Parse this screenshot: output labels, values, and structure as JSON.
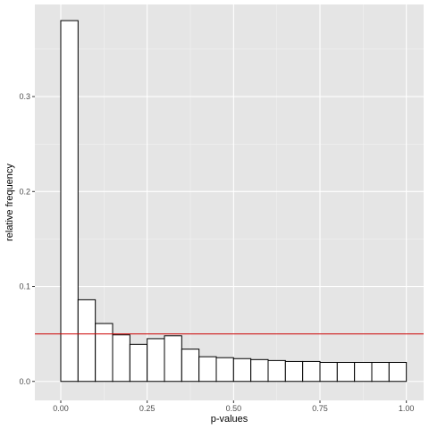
{
  "chart_data": {
    "type": "bar",
    "xlabel": "p-values",
    "ylabel": "relative frequency",
    "xlim": [
      -0.075,
      1.05
    ],
    "ylim": [
      -0.02,
      0.397
    ],
    "x_ticks": [
      0.0,
      0.25,
      0.5,
      0.75,
      1.0
    ],
    "x_tick_labels": [
      "0.00",
      "0.25",
      "0.50",
      "0.75",
      "1.00"
    ],
    "y_ticks": [
      0.0,
      0.1,
      0.2,
      0.3
    ],
    "y_tick_labels": [
      "0.0",
      "0.1",
      "0.2",
      "0.3"
    ],
    "bin_width": 0.05,
    "bins": [
      {
        "x0": 0.0,
        "x1": 0.05,
        "value": 0.38
      },
      {
        "x0": 0.05,
        "x1": 0.1,
        "value": 0.086
      },
      {
        "x0": 0.1,
        "x1": 0.15,
        "value": 0.061
      },
      {
        "x0": 0.15,
        "x1": 0.2,
        "value": 0.049
      },
      {
        "x0": 0.2,
        "x1": 0.25,
        "value": 0.039
      },
      {
        "x0": 0.25,
        "x1": 0.3,
        "value": 0.045
      },
      {
        "x0": 0.3,
        "x1": 0.35,
        "value": 0.048
      },
      {
        "x0": 0.35,
        "x1": 0.4,
        "value": 0.034
      },
      {
        "x0": 0.4,
        "x1": 0.45,
        "value": 0.026
      },
      {
        "x0": 0.45,
        "x1": 0.5,
        "value": 0.025
      },
      {
        "x0": 0.5,
        "x1": 0.55,
        "value": 0.024
      },
      {
        "x0": 0.55,
        "x1": 0.6,
        "value": 0.023
      },
      {
        "x0": 0.6,
        "x1": 0.65,
        "value": 0.022
      },
      {
        "x0": 0.65,
        "x1": 0.7,
        "value": 0.021
      },
      {
        "x0": 0.7,
        "x1": 0.75,
        "value": 0.021
      },
      {
        "x0": 0.75,
        "x1": 0.8,
        "value": 0.02
      },
      {
        "x0": 0.8,
        "x1": 0.85,
        "value": 0.02
      },
      {
        "x0": 0.85,
        "x1": 0.9,
        "value": 0.02
      },
      {
        "x0": 0.9,
        "x1": 0.95,
        "value": 0.02
      },
      {
        "x0": 0.95,
        "x1": 1.0,
        "value": 0.02
      }
    ],
    "reference_line": {
      "y": 0.05,
      "color": "#cc0000"
    },
    "grid": true,
    "colors": {
      "panel_background": "#e5e5e5",
      "grid_major": "#ffffff",
      "bar_fill": "#ffffff",
      "bar_outline": "#000000"
    }
  }
}
